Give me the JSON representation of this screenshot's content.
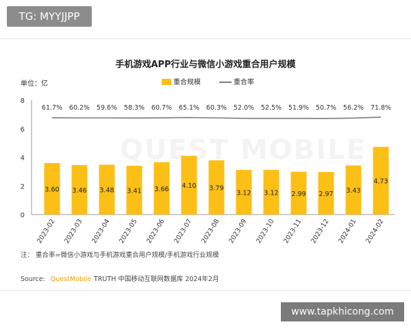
{
  "header": {
    "tag": "TG: MYYJJPP"
  },
  "chart_data": {
    "type": "bar",
    "title": "手机游戏APP行业与微信小游戏重合用户规模",
    "unit_label": "单位：亿",
    "categories": [
      "2023-02",
      "2023-03",
      "2023-04",
      "2023-05",
      "2023-06",
      "2023-07",
      "2023-08",
      "2023-09",
      "2023-10",
      "2023-11",
      "2023-12",
      "2024-01",
      "2024-02"
    ],
    "ylim": [
      0,
      8
    ],
    "yticks": [
      "0",
      "2",
      "4",
      "6",
      "8"
    ],
    "series": [
      {
        "name": "重合规模",
        "kind": "bar",
        "values": [
          3.6,
          3.46,
          3.48,
          3.41,
          3.66,
          4.1,
          3.79,
          3.12,
          3.12,
          2.99,
          2.97,
          3.43,
          4.73
        ],
        "labels": [
          "3.60",
          "3.46",
          "3.48",
          "3.41",
          "3.66",
          "4.10",
          "3.79",
          "3.12",
          "3.12",
          "2.99",
          "2.97",
          "3.43",
          "4.73"
        ]
      },
      {
        "name": "重合率",
        "kind": "line",
        "values": [
          61.7,
          60.2,
          59.6,
          58.3,
          60.7,
          65.1,
          60.3,
          52.0,
          52.5,
          51.9,
          50.7,
          56.2,
          71.8
        ],
        "labels": [
          "61.7%",
          "60.2%",
          "59.6%",
          "58.3%",
          "60.7%",
          "65.1%",
          "60.3%",
          "52.0%",
          "52.5%",
          "51.9%",
          "50.7%",
          "56.2%",
          "71.8%"
        ]
      }
    ],
    "legend_position": "top-center",
    "grid": false,
    "bar_color": "#fbbf16",
    "line_color": "#7a7a7a"
  },
  "note": "注：   重合率=微信小游戏与手机游戏重合用户规模/手机游戏行业规模",
  "source": {
    "prefix": "Source:",
    "brand": "QuestMobile",
    "rest": "TRUTH 中国移动互联网数据库 2024年2月"
  },
  "watermark": {
    "text": "QUEST MOBILE"
  },
  "footer": {
    "site": "www.tapkhicong.com"
  }
}
